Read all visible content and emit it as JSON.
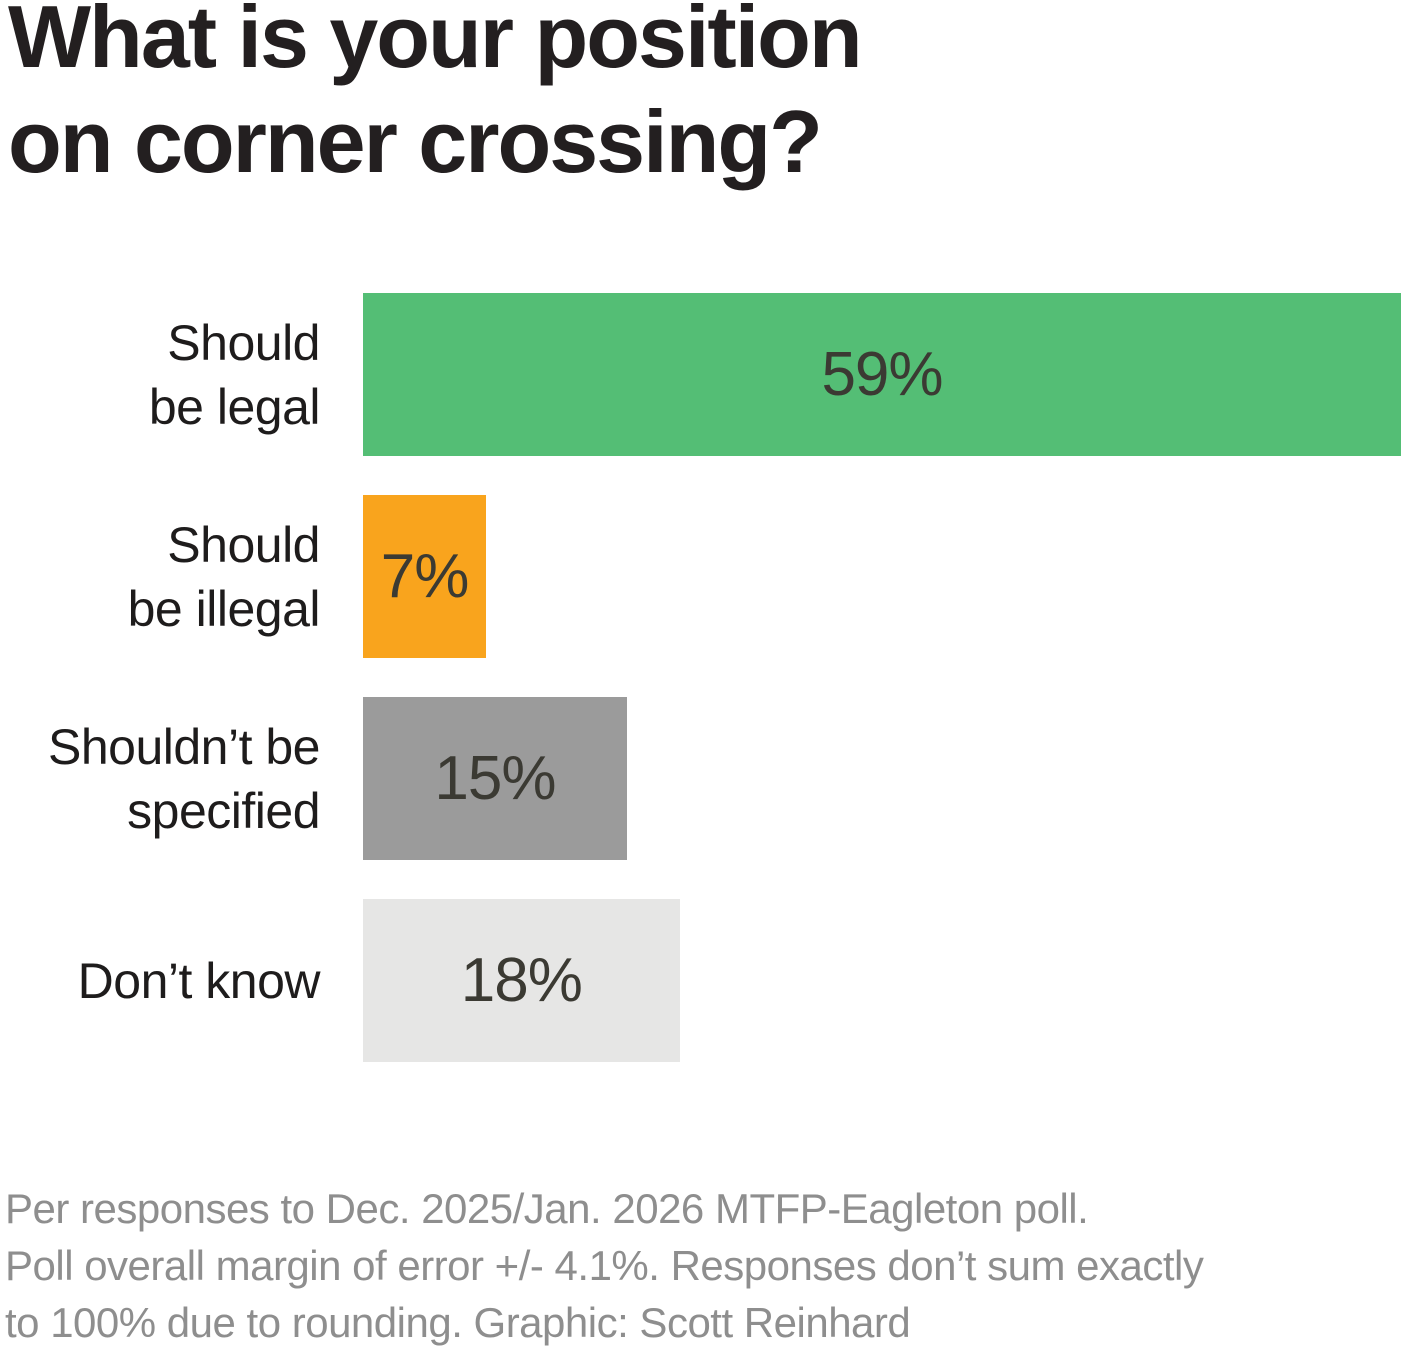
{
  "title": {
    "lines": [
      "What is your position",
      "on corner crossing?"
    ]
  },
  "chart_data": {
    "type": "bar",
    "orientation": "horizontal",
    "title": "What is your position on corner crossing?",
    "categories": [
      "Should be legal",
      "Should be illegal",
      "Shouldn’t be specified",
      "Don’t know"
    ],
    "values": [
      59,
      7,
      15,
      18
    ],
    "value_labels": [
      "59%",
      "7%",
      "15%",
      "18%"
    ],
    "label_lines": [
      [
        "Should",
        "be legal"
      ],
      [
        "Should",
        "be illegal"
      ],
      [
        "Shouldn’t be",
        "specified"
      ],
      [
        "Don’t know"
      ]
    ],
    "bar_colors": [
      "#54be75",
      "#f9a41d",
      "#9b9b9b",
      "#e6e6e5"
    ],
    "value_label_color": "#3b3a33",
    "xlim": [
      0,
      59
    ],
    "grid": false,
    "legend": false,
    "value_label_position": "center-inside"
  },
  "footer": {
    "lines": [
      "Per responses to Dec. 2025/Jan. 2026 MTFP-Eagleton poll.",
      "Poll overall margin of error +/- 4.1%. Responses don’t sum exactly",
      "to 100% due to rounding. Graphic: Scott Reinhard"
    ]
  },
  "colors": {
    "title_text": "#231f20",
    "category_text": "#1e1c1c",
    "footer_text": "#8e8e8e",
    "background": "#ffffff"
  }
}
